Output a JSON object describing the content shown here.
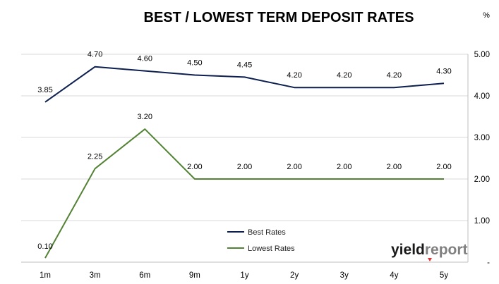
{
  "chart_data": {
    "type": "line",
    "title": "BEST / LOWEST TERM DEPOSIT RATES",
    "unit": "%",
    "categories": [
      "1m",
      "3m",
      "6m",
      "9m",
      "1y",
      "2y",
      "3y",
      "4y",
      "5y"
    ],
    "y_axis": {
      "position": "right",
      "ylim": [
        0,
        5
      ],
      "ticks": [
        0,
        1,
        2,
        3,
        4,
        5
      ],
      "tick_labels": [
        "-",
        "1.00",
        "2.00",
        "3.00",
        "4.00",
        "5.00"
      ]
    },
    "grid": true,
    "series": [
      {
        "name": "Best Rates",
        "color": "#0d1f4f",
        "values": [
          3.85,
          4.7,
          4.6,
          4.5,
          4.45,
          4.2,
          4.2,
          4.2,
          4.3
        ],
        "labels": [
          "3.85",
          "4.70",
          "4.60",
          "4.50",
          "4.45",
          "4.20",
          "4.20",
          "4.20",
          "4.30"
        ]
      },
      {
        "name": "Lowest Rates",
        "color": "#548235",
        "values": [
          0.1,
          2.25,
          3.2,
          2.0,
          2.0,
          2.0,
          2.0,
          2.0,
          2.0
        ],
        "labels": [
          "0.10",
          "2.25",
          "3.20",
          "2.00",
          "2.00",
          "2.00",
          "2.00",
          "2.00",
          "2.00"
        ]
      }
    ],
    "legend": "bottom-center"
  },
  "logo": {
    "part1": "yield",
    "part2": "report"
  }
}
